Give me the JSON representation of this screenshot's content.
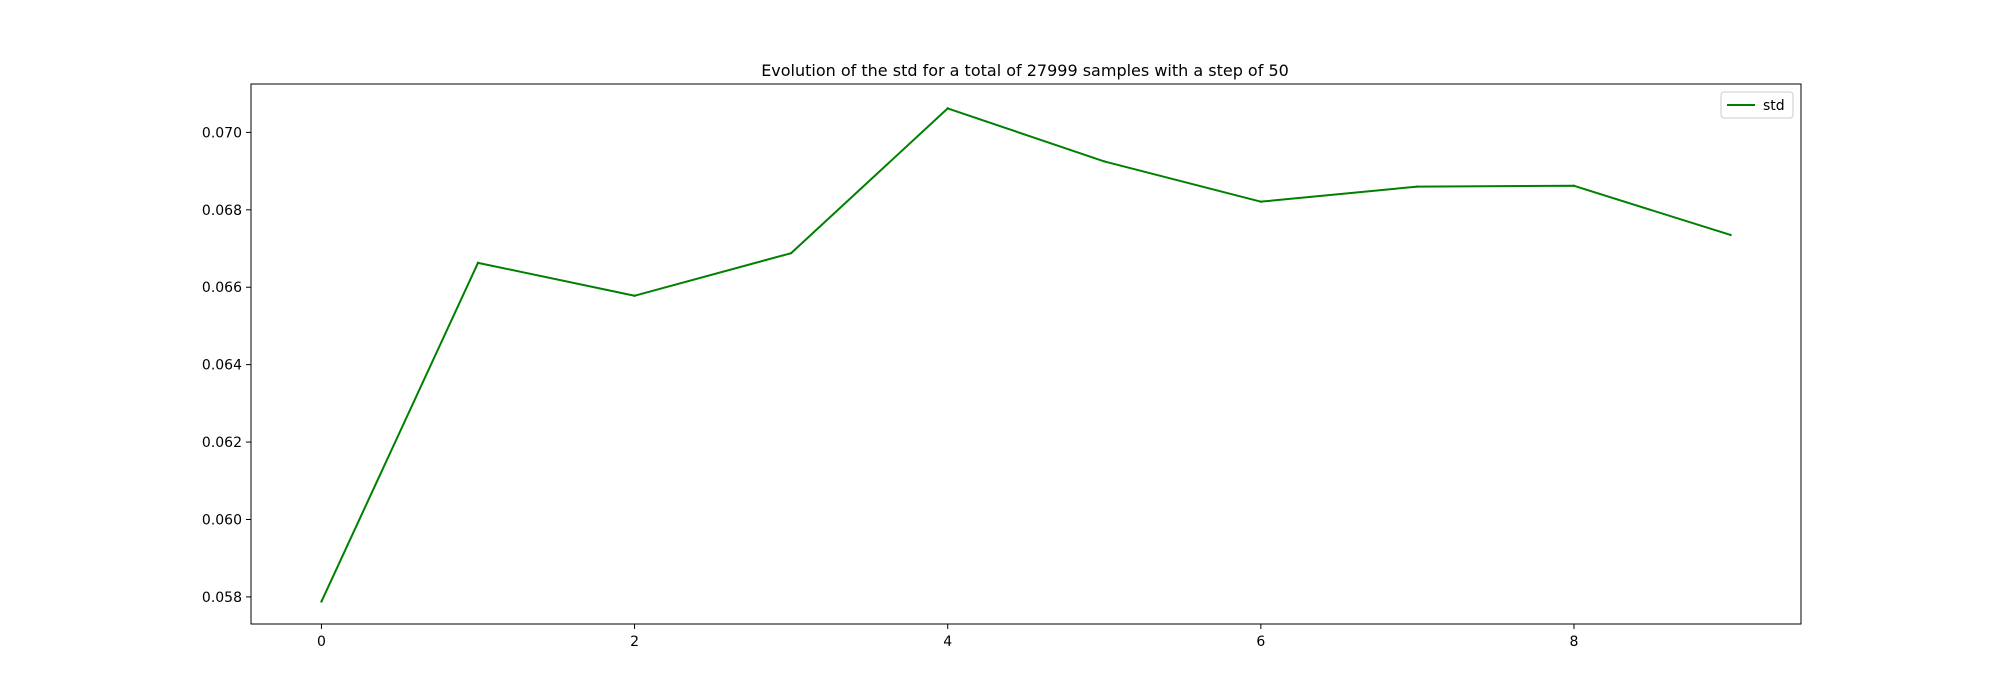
{
  "chart_data": {
    "type": "line",
    "title": "Evolution of the std for a total of 27999 samples with a step of 50",
    "xlabel": "",
    "ylabel": "",
    "x": [
      0,
      1,
      2,
      3,
      4,
      5,
      6,
      7,
      8,
      9
    ],
    "series": [
      {
        "name": "std",
        "color": "#008000",
        "values": [
          0.05788,
          0.06663,
          0.06578,
          0.06688,
          0.07062,
          0.06925,
          0.06821,
          0.0686,
          0.06862,
          0.06735
        ]
      }
    ],
    "xlim": [
      -0.45,
      9.45
    ],
    "ylim": [
      0.0573,
      0.07125
    ],
    "xticks": [
      0,
      2,
      4,
      6,
      8
    ],
    "xtick_labels": [
      "0",
      "2",
      "4",
      "6",
      "8"
    ],
    "yticks": [
      0.058,
      0.06,
      0.062,
      0.064,
      0.066,
      0.068,
      0.07
    ],
    "ytick_labels": [
      "0.058",
      "0.060",
      "0.062",
      "0.064",
      "0.066",
      "0.068",
      "0.070"
    ],
    "grid": false,
    "legend_position": "top-right"
  }
}
